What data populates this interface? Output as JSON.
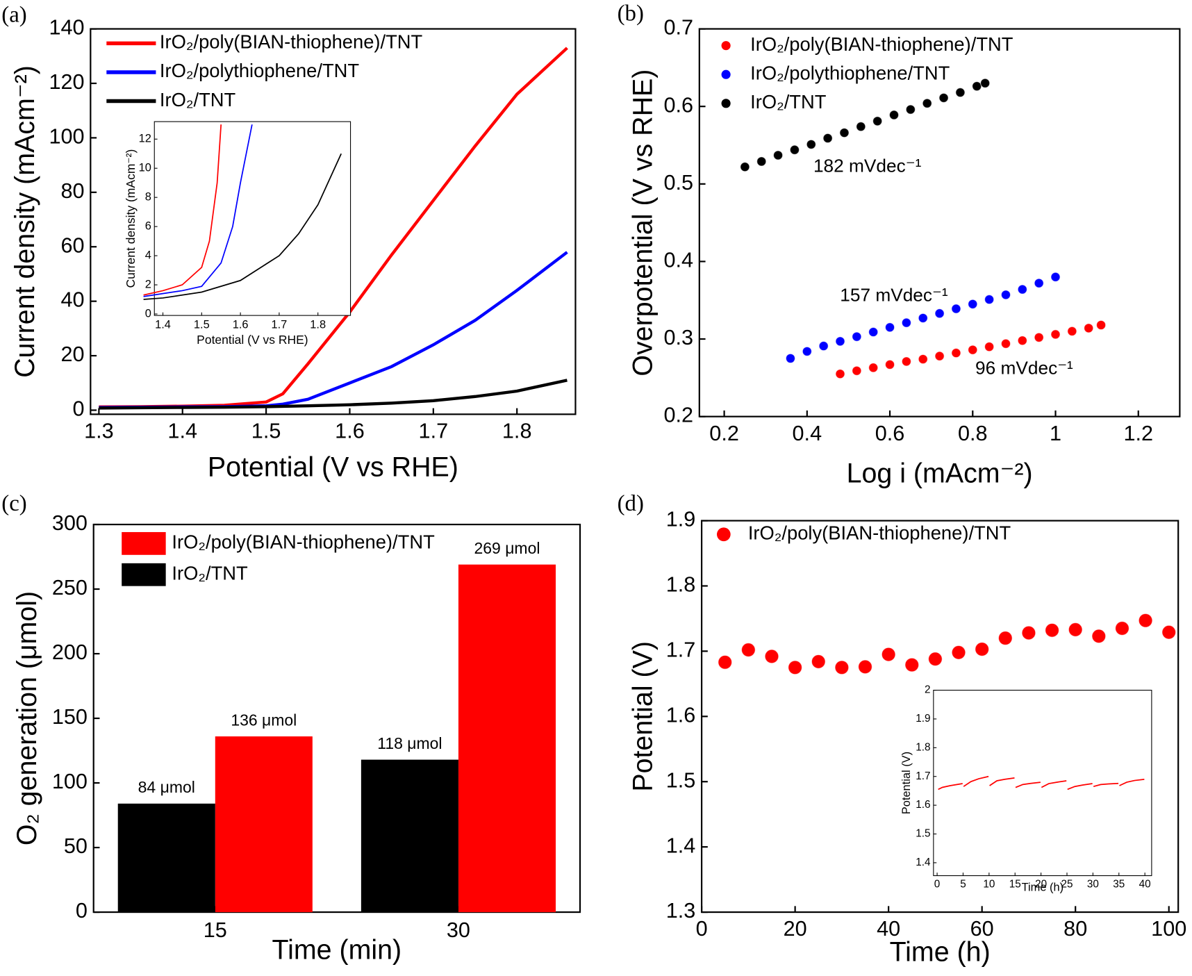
{
  "chart_data": [
    {
      "type": "line",
      "panel": "(a)",
      "xlabel": "Potential (V vs RHE)",
      "ylabel": "Current density (mAcm⁻²)",
      "xlim": [
        1.29,
        1.87
      ],
      "xticks": [
        1.3,
        1.4,
        1.5,
        1.6,
        1.7,
        1.8
      ],
      "ylim": [
        -1.5,
        140
      ],
      "yticks": [
        0,
        20,
        40,
        60,
        80,
        100,
        120,
        140
      ],
      "legend": "upper left",
      "x": [
        1.3,
        1.35,
        1.4,
        1.45,
        1.5,
        1.52,
        1.55,
        1.6,
        1.65,
        1.7,
        1.75,
        1.8,
        1.86
      ],
      "series": [
        {
          "name": "IrO₂/poly(BIAN-thiophene)/TNT",
          "color": "#ff0000",
          "values": [
            1.2,
            1.3,
            1.5,
            1.8,
            3,
            6,
            17,
            36,
            57,
            77,
            97,
            116,
            133
          ]
        },
        {
          "name": "IrO₂/polythiophene/TNT",
          "color": "#0000ff",
          "values": [
            1.0,
            1.1,
            1.2,
            1.3,
            1.6,
            2.2,
            4,
            10,
            16,
            24,
            33,
            44,
            58
          ]
        },
        {
          "name": "IrO₂/TNT",
          "color": "#000000",
          "values": [
            0.8,
            0.9,
            1.0,
            1.1,
            1.3,
            1.4,
            1.6,
            2.0,
            2.6,
            3.5,
            5,
            7,
            11
          ]
        }
      ]
    },
    {
      "type": "scatter",
      "panel": "(b)",
      "xlabel": "Log i (mAcm⁻²)",
      "ylabel": "Overpotential (V vs RHE)",
      "xlim": [
        0.14,
        1.3
      ],
      "xticks": [
        0.2,
        0.4,
        0.6,
        0.8,
        1,
        1.2
      ],
      "ylim": [
        0.2,
        0.7
      ],
      "yticks": [
        0.2,
        0.3,
        0.4,
        0.5,
        0.6,
        0.7
      ],
      "legend": "upper left",
      "series": [
        {
          "name": "IrO₂/poly(BIAN-thiophene)/TNT",
          "color": "#ff0000",
          "annotation": "96 mVdec⁻¹",
          "x": [
            0.48,
            0.52,
            0.56,
            0.6,
            0.64,
            0.68,
            0.72,
            0.76,
            0.8,
            0.84,
            0.88,
            0.92,
            0.96,
            1.0,
            1.04,
            1.08,
            1.11
          ],
          "values": [
            0.255,
            0.259,
            0.263,
            0.267,
            0.271,
            0.274,
            0.278,
            0.282,
            0.286,
            0.29,
            0.294,
            0.298,
            0.302,
            0.306,
            0.31,
            0.314,
            0.318
          ]
        },
        {
          "name": "IrO₂/polythiophene/TNT",
          "color": "#0000ff",
          "annotation": "157 mVdec⁻¹",
          "x": [
            0.36,
            0.4,
            0.44,
            0.48,
            0.52,
            0.56,
            0.6,
            0.64,
            0.68,
            0.72,
            0.76,
            0.8,
            0.84,
            0.88,
            0.92,
            0.96,
            1.0
          ],
          "values": [
            0.275,
            0.284,
            0.291,
            0.297,
            0.303,
            0.309,
            0.315,
            0.321,
            0.327,
            0.333,
            0.339,
            0.345,
            0.351,
            0.357,
            0.364,
            0.372,
            0.38
          ]
        },
        {
          "name": "IrO₂/TNT",
          "color": "#000000",
          "annotation": "182 mVdec⁻¹",
          "x": [
            0.25,
            0.29,
            0.33,
            0.37,
            0.41,
            0.45,
            0.49,
            0.53,
            0.57,
            0.61,
            0.65,
            0.69,
            0.73,
            0.77,
            0.81,
            0.83
          ],
          "values": [
            0.522,
            0.529,
            0.537,
            0.544,
            0.551,
            0.559,
            0.566,
            0.574,
            0.581,
            0.589,
            0.596,
            0.604,
            0.611,
            0.618,
            0.626,
            0.63
          ]
        }
      ]
    },
    {
      "type": "bar",
      "panel": "(c)",
      "xlabel": "Time (min)",
      "ylabel": "O₂ generation (μmol)",
      "categories": [
        "15",
        "30"
      ],
      "ylim": [
        0,
        300
      ],
      "yticks": [
        0,
        50,
        100,
        150,
        200,
        250,
        300
      ],
      "legend": "upper left",
      "series": [
        {
          "name": "IrO₂/poly(BIAN-thiophene)/TNT",
          "color": "#ff0000",
          "values": [
            136,
            269
          ],
          "value_labels": [
            "136 μmol",
            "269 μmol"
          ]
        },
        {
          "name": "IrO₂/TNT",
          "color": "#000000",
          "values": [
            84,
            118
          ],
          "value_labels": [
            "84 μmol",
            "118 μmol"
          ]
        }
      ]
    },
    {
      "type": "scatter",
      "panel": "(d)",
      "xlabel": "Time (h)",
      "ylabel": "Potential (V)",
      "xlim": [
        0,
        102
      ],
      "xticks": [
        0,
        20,
        40,
        60,
        80,
        100
      ],
      "ylim": [
        1.3,
        1.9
      ],
      "yticks": [
        1.3,
        1.4,
        1.5,
        1.6,
        1.7,
        1.8,
        1.9
      ],
      "legend": "upper left",
      "series": [
        {
          "name": "IrO₂/poly(BIAN-thiophene)/TNT",
          "color": "#ff0000",
          "x": [
            5,
            10,
            15,
            20,
            25,
            30,
            35,
            40,
            45,
            50,
            55,
            60,
            65,
            70,
            75,
            80,
            85,
            90,
            95,
            100
          ],
          "values": [
            1.683,
            1.702,
            1.692,
            1.675,
            1.684,
            1.675,
            1.676,
            1.695,
            1.679,
            1.688,
            1.698,
            1.703,
            1.72,
            1.728,
            1.732,
            1.733,
            1.723,
            1.735,
            1.747,
            1.729
          ]
        }
      ]
    },
    {
      "type": "line",
      "xlabel": "Potential (V vs RHE)",
      "ylabel": "Current density (mAcm⁻²)",
      "xlim": [
        1.378,
        1.884
      ],
      "xticks": [
        1.4,
        1.5,
        1.6,
        1.7,
        1.8
      ],
      "ylim": [
        -0.1,
        13.2
      ],
      "yticks": [
        0,
        2,
        4,
        6,
        8,
        10,
        12
      ],
      "series": [
        {
          "color": "#ff0000",
          "x": [
            1.35,
            1.4,
            1.45,
            1.5,
            1.52,
            1.54,
            1.55
          ],
          "values": [
            1.3,
            1.6,
            2.0,
            3.2,
            5,
            9,
            13
          ]
        },
        {
          "color": "#0000ff",
          "x": [
            1.35,
            1.4,
            1.45,
            1.5,
            1.55,
            1.58,
            1.6,
            1.63
          ],
          "values": [
            1.2,
            1.4,
            1.6,
            1.9,
            3.5,
            6,
            9,
            13
          ]
        },
        {
          "color": "#000000",
          "x": [
            1.35,
            1.4,
            1.5,
            1.6,
            1.7,
            1.75,
            1.8,
            1.86
          ],
          "values": [
            1.0,
            1.1,
            1.5,
            2.3,
            4,
            5.5,
            7.5,
            11
          ]
        }
      ]
    },
    {
      "type": "line",
      "xlabel": "Time (h)",
      "ylabel": "Potential (V)",
      "xlim": [
        -0.7,
        41.3
      ],
      "xticks": [
        0,
        5,
        10,
        15,
        20,
        25,
        30,
        35,
        40
      ],
      "ylim": [
        1.355,
        2
      ],
      "yticks": [
        1.4,
        1.5,
        1.6,
        1.7,
        1.8,
        1.9,
        2
      ],
      "series": [
        {
          "color": "#ff0000",
          "x": [
            0.2,
            1,
            2.5,
            4.9,
            5,
            5.1,
            6.5,
            8,
            9.9,
            10,
            10.1,
            11.5,
            13,
            14.9,
            15,
            15.1,
            16.5,
            18,
            19.9,
            20,
            20.1,
            21.5,
            23,
            24.9,
            25,
            25.1,
            26.5,
            28,
            29.9,
            30,
            30.1,
            31.5,
            33,
            34.9,
            35,
            35.1,
            36.5,
            38,
            39.9
          ],
          "values": [
            1.655,
            1.662,
            1.668,
            1.675,
            null,
            1.665,
            1.682,
            1.692,
            1.7,
            null,
            1.668,
            1.685,
            1.69,
            1.695,
            null,
            1.662,
            1.672,
            1.676,
            1.68,
            null,
            1.662,
            1.675,
            1.68,
            1.685,
            null,
            1.655,
            1.665,
            1.67,
            1.675,
            null,
            1.665,
            1.672,
            1.674,
            1.676,
            null,
            1.668,
            1.68,
            1.686,
            1.69
          ]
        }
      ]
    }
  ]
}
